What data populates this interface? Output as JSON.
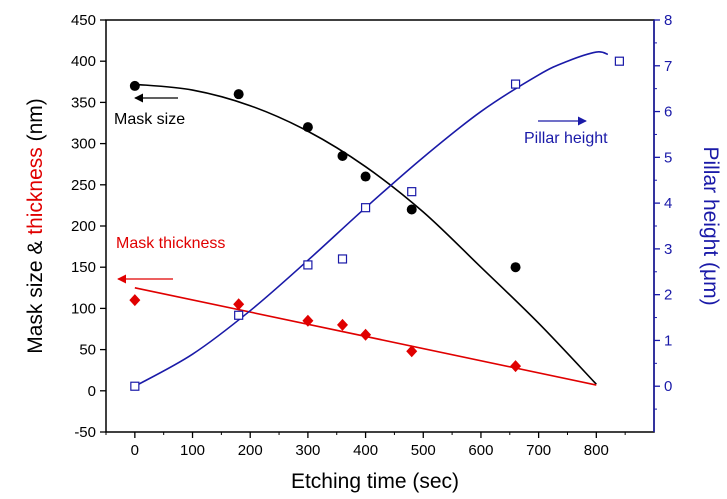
{
  "chart_data": {
    "type": "scatter",
    "xlabel": "Etching time (sec)",
    "ylabel_left": {
      "part1": "Mask size & ",
      "part2": "thickness",
      "part3": " (nm)"
    },
    "ylabel_right": "Pillar height (μm)",
    "xlim": [
      -50,
      900
    ],
    "ylim_left": [
      -50,
      450
    ],
    "ylim_right": [
      -1,
      8
    ],
    "x_ticks": [
      0,
      100,
      200,
      300,
      400,
      500,
      600,
      700,
      800
    ],
    "y_left_ticks": [
      -50,
      0,
      50,
      100,
      150,
      200,
      250,
      300,
      350,
      400,
      450
    ],
    "y_right_ticks": [
      0,
      1,
      2,
      3,
      4,
      5,
      6,
      7,
      8
    ],
    "grid": false,
    "colors": {
      "mask_size": "#000000",
      "mask_thickness": "#e00000",
      "pillar_height": "#1a1aa8"
    },
    "series": [
      {
        "name": "Mask size",
        "axis": "left",
        "marker": "circle",
        "x": [
          0,
          180,
          300,
          360,
          400,
          480,
          660
        ],
        "y": [
          370,
          360,
          320,
          285,
          260,
          220,
          150
        ],
        "fit_x": [
          0,
          100,
          200,
          300,
          400,
          500,
          600,
          700,
          800
        ],
        "fit_y": [
          372,
          365,
          346,
          315,
          272,
          217,
          150,
          82,
          8
        ]
      },
      {
        "name": "Mask thickness",
        "axis": "left",
        "marker": "diamond",
        "x": [
          0,
          180,
          300,
          360,
          400,
          480,
          660
        ],
        "y": [
          110,
          105,
          85,
          80,
          68,
          48,
          30
        ],
        "fit_x": [
          0,
          800
        ],
        "fit_y": [
          125,
          7
        ]
      },
      {
        "name": "Pillar height",
        "axis": "right",
        "marker": "open-square",
        "x": [
          0,
          180,
          300,
          360,
          400,
          480,
          660,
          840
        ],
        "y": [
          0,
          1.55,
          2.65,
          2.78,
          3.9,
          4.25,
          6.6,
          7.1
        ],
        "fit_x": [
          0,
          100,
          200,
          300,
          400,
          500,
          600,
          700,
          750,
          800,
          820
        ],
        "fit_y": [
          0,
          0.7,
          1.65,
          2.75,
          3.9,
          5.0,
          6.0,
          6.8,
          7.1,
          7.3,
          7.25
        ]
      }
    ],
    "annotations": [
      {
        "text": "Mask size",
        "color": "#000000",
        "arrow": "left"
      },
      {
        "text": "Mask thickness",
        "color": "#e00000",
        "arrow": "left"
      },
      {
        "text": "Pillar height",
        "color": "#1a1aa8",
        "arrow": "right"
      }
    ]
  }
}
